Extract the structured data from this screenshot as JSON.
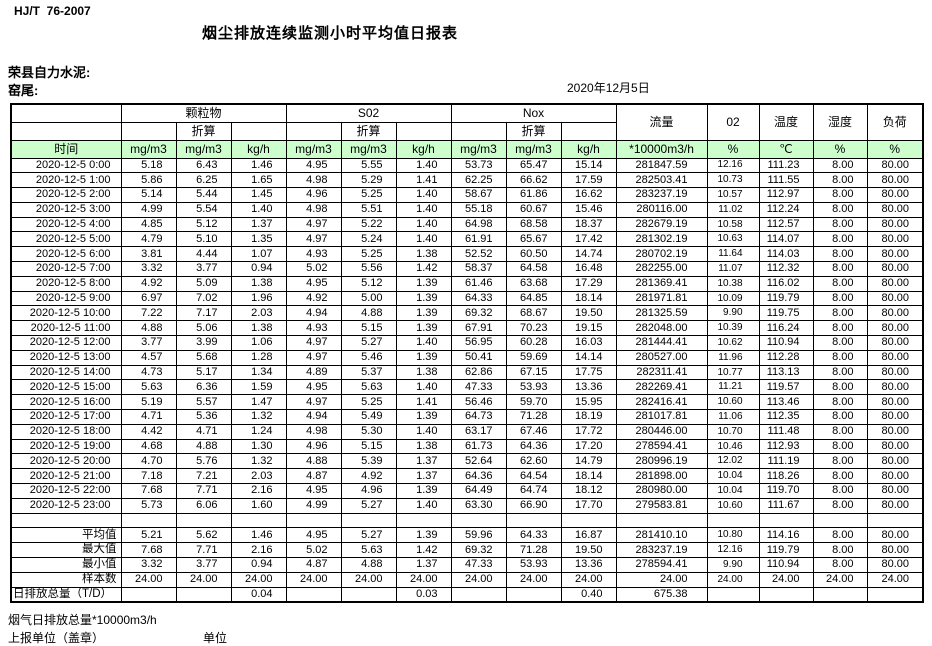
{
  "page": {
    "standard": "HJ/T  76-2007",
    "title": "烟尘排放连续监测小时平均值日报表",
    "company": "荣县自力水泥:",
    "location": "窑尾:",
    "date": "2020年12月5日"
  },
  "table": {
    "time_label": "时间",
    "converted_label": "折算",
    "group_labels": [
      "颗粒物",
      "S02",
      "Nox"
    ],
    "single_cols": [
      "流量",
      "02",
      "温度",
      "湿度",
      "负荷"
    ],
    "units": [
      "mg/m3",
      "mg/m3",
      "kg/h",
      "mg/m3",
      "mg/m3",
      "kg/h",
      "mg/m3",
      "mg/m3",
      "kg/h",
      "*10000m3/h",
      "%",
      "℃",
      "%",
      "%"
    ],
    "rows": [
      {
        "time": "2020-12-5 0:00",
        "values": [
          "5.18",
          "6.43",
          "1.46",
          "4.95",
          "5.55",
          "1.40",
          "53.73",
          "65.47",
          "15.14",
          "281847.59",
          "12.16",
          "111.23",
          "8.00",
          "80.00"
        ]
      },
      {
        "time": "2020-12-5 1:00",
        "values": [
          "5.86",
          "6.25",
          "1.65",
          "4.98",
          "5.29",
          "1.41",
          "62.25",
          "66.62",
          "17.59",
          "282503.41",
          "10.73",
          "111.55",
          "8.00",
          "80.00"
        ]
      },
      {
        "time": "2020-12-5 2:00",
        "values": [
          "5.14",
          "5.44",
          "1.45",
          "4.96",
          "5.25",
          "1.40",
          "58.67",
          "61.86",
          "16.62",
          "283237.19",
          "10.57",
          "112.97",
          "8.00",
          "80.00"
        ]
      },
      {
        "time": "2020-12-5 3:00",
        "values": [
          "4.99",
          "5.54",
          "1.40",
          "4.98",
          "5.51",
          "1.40",
          "55.18",
          "60.67",
          "15.46",
          "280116.00",
          "11.02",
          "112.24",
          "8.00",
          "80.00"
        ]
      },
      {
        "time": "2020-12-5 4:00",
        "values": [
          "4.85",
          "5.12",
          "1.37",
          "4.97",
          "5.22",
          "1.40",
          "64.98",
          "68.58",
          "18.37",
          "282679.19",
          "10.58",
          "112.57",
          "8.00",
          "80.00"
        ]
      },
      {
        "time": "2020-12-5 5:00",
        "values": [
          "4.79",
          "5.10",
          "1.35",
          "4.97",
          "5.24",
          "1.40",
          "61.91",
          "65.67",
          "17.42",
          "281302.19",
          "10.63",
          "114.07",
          "8.00",
          "80.00"
        ]
      },
      {
        "time": "2020-12-5 6:00",
        "values": [
          "3.81",
          "4.44",
          "1.07",
          "4.93",
          "5.25",
          "1.38",
          "52.52",
          "60.50",
          "14.74",
          "280702.19",
          "11.64",
          "114.03",
          "8.00",
          "80.00"
        ]
      },
      {
        "time": "2020-12-5 7:00",
        "values": [
          "3.32",
          "3.77",
          "0.94",
          "5.02",
          "5.56",
          "1.42",
          "58.37",
          "64.58",
          "16.48",
          "282255.00",
          "11.07",
          "112.32",
          "8.00",
          "80.00"
        ]
      },
      {
        "time": "2020-12-5 8:00",
        "values": [
          "4.92",
          "5.09",
          "1.38",
          "4.95",
          "5.12",
          "1.39",
          "61.46",
          "63.68",
          "17.29",
          "281369.41",
          "10.38",
          "116.02",
          "8.00",
          "80.00"
        ]
      },
      {
        "time": "2020-12-5 9:00",
        "values": [
          "6.97",
          "7.02",
          "1.96",
          "4.92",
          "5.00",
          "1.39",
          "64.33",
          "64.85",
          "18.14",
          "281971.81",
          "10.09",
          "119.79",
          "8.00",
          "80.00"
        ]
      },
      {
        "time": "2020-12-5 10:00",
        "values": [
          "7.22",
          "7.17",
          "2.03",
          "4.94",
          "4.88",
          "1.39",
          "69.32",
          "68.67",
          "19.50",
          "281325.59",
          "9.90",
          "119.75",
          "8.00",
          "80.00"
        ]
      },
      {
        "time": "2020-12-5 11:00",
        "values": [
          "4.88",
          "5.06",
          "1.38",
          "4.93",
          "5.15",
          "1.39",
          "67.91",
          "70.23",
          "19.15",
          "282048.00",
          "10.39",
          "116.24",
          "8.00",
          "80.00"
        ]
      },
      {
        "time": "2020-12-5 12:00",
        "values": [
          "3.77",
          "3.99",
          "1.06",
          "4.97",
          "5.27",
          "1.40",
          "56.95",
          "60.28",
          "16.03",
          "281444.41",
          "10.62",
          "110.94",
          "8.00",
          "80.00"
        ]
      },
      {
        "time": "2020-12-5 13:00",
        "values": [
          "4.57",
          "5.68",
          "1.28",
          "4.97",
          "5.46",
          "1.39",
          "50.41",
          "59.69",
          "14.14",
          "280527.00",
          "11.96",
          "112.28",
          "8.00",
          "80.00"
        ]
      },
      {
        "time": "2020-12-5 14:00",
        "values": [
          "4.73",
          "5.17",
          "1.34",
          "4.89",
          "5.37",
          "1.38",
          "62.86",
          "67.15",
          "17.75",
          "282311.41",
          "10.77",
          "113.13",
          "8.00",
          "80.00"
        ]
      },
      {
        "time": "2020-12-5 15:00",
        "values": [
          "5.63",
          "6.36",
          "1.59",
          "4.95",
          "5.63",
          "1.40",
          "47.33",
          "53.93",
          "13.36",
          "282269.41",
          "11.21",
          "119.57",
          "8.00",
          "80.00"
        ]
      },
      {
        "time": "2020-12-5 16:00",
        "values": [
          "5.19",
          "5.57",
          "1.47",
          "4.97",
          "5.25",
          "1.41",
          "56.46",
          "59.70",
          "15.95",
          "282416.41",
          "10.60",
          "113.46",
          "8.00",
          "80.00"
        ]
      },
      {
        "time": "2020-12-5 17:00",
        "values": [
          "4.71",
          "5.36",
          "1.32",
          "4.94",
          "5.49",
          "1.39",
          "64.73",
          "71.28",
          "18.19",
          "281017.81",
          "11.06",
          "112.35",
          "8.00",
          "80.00"
        ]
      },
      {
        "time": "2020-12-5 18:00",
        "values": [
          "4.42",
          "4.71",
          "1.24",
          "4.98",
          "5.30",
          "1.40",
          "63.17",
          "67.46",
          "17.72",
          "280446.00",
          "10.70",
          "111.48",
          "8.00",
          "80.00"
        ]
      },
      {
        "time": "2020-12-5 19:00",
        "values": [
          "4.68",
          "4.88",
          "1.30",
          "4.96",
          "5.15",
          "1.38",
          "61.73",
          "64.36",
          "17.20",
          "278594.41",
          "10.46",
          "112.93",
          "8.00",
          "80.00"
        ]
      },
      {
        "time": "2020-12-5 20:00",
        "values": [
          "4.70",
          "5.76",
          "1.32",
          "4.88",
          "5.39",
          "1.37",
          "52.64",
          "62.60",
          "14.79",
          "280996.19",
          "12.02",
          "111.19",
          "8.00",
          "80.00"
        ]
      },
      {
        "time": "2020-12-5 21:00",
        "values": [
          "7.18",
          "7.21",
          "2.03",
          "4.87",
          "4.92",
          "1.37",
          "64.36",
          "64.54",
          "18.14",
          "281898.00",
          "10.04",
          "118.26",
          "8.00",
          "80.00"
        ]
      },
      {
        "time": "2020-12-5 22:00",
        "values": [
          "7.68",
          "7.71",
          "2.16",
          "4.95",
          "4.96",
          "1.39",
          "64.49",
          "64.74",
          "18.12",
          "280980.00",
          "10.04",
          "119.70",
          "8.00",
          "80.00"
        ]
      },
      {
        "time": "2020-12-5 23:00",
        "values": [
          "5.73",
          "6.06",
          "1.60",
          "4.99",
          "5.27",
          "1.40",
          "63.30",
          "66.90",
          "17.70",
          "279583.81",
          "10.60",
          "111.67",
          "8.00",
          "80.00"
        ]
      }
    ],
    "summary": [
      {
        "label": "",
        "values": [
          "",
          "",
          "",
          "",
          "",
          "",
          "",
          "",
          "",
          "",
          "",
          "",
          "",
          ""
        ]
      },
      {
        "label": "平均值",
        "values": [
          "5.21",
          "5.62",
          "1.46",
          "4.95",
          "5.27",
          "1.39",
          "59.96",
          "64.33",
          "16.87",
          "281410.10",
          "10.80",
          "114.16",
          "8.00",
          "80.00"
        ]
      },
      {
        "label": "最大值",
        "values": [
          "7.68",
          "7.71",
          "2.16",
          "5.02",
          "5.63",
          "1.42",
          "69.32",
          "71.28",
          "19.50",
          "283237.19",
          "12.16",
          "119.79",
          "8.00",
          "80.00"
        ]
      },
      {
        "label": "最小值",
        "values": [
          "3.32",
          "3.77",
          "0.94",
          "4.87",
          "4.88",
          "1.37",
          "47.33",
          "53.93",
          "13.36",
          "278594.41",
          "9.90",
          "110.94",
          "8.00",
          "80.00"
        ]
      },
      {
        "label": "样本数",
        "values": [
          "24.00",
          "24.00",
          "24.00",
          "24.00",
          "24.00",
          "24.00",
          "24.00",
          "24.00",
          "24.00",
          "24.00",
          "24.00",
          "24.00",
          "24.00",
          "24.00"
        ]
      },
      {
        "label": "日排放总量（T/D）",
        "values": [
          "",
          "",
          "0.04",
          "",
          "",
          "0.03",
          "",
          "",
          "0.40",
          "675.38",
          "",
          "",
          "",
          ""
        ]
      }
    ]
  },
  "footer": {
    "line1": "烟气日排放总量*10000m3/h",
    "line2": "上报单位（盖章）",
    "unit_label": "单位"
  }
}
